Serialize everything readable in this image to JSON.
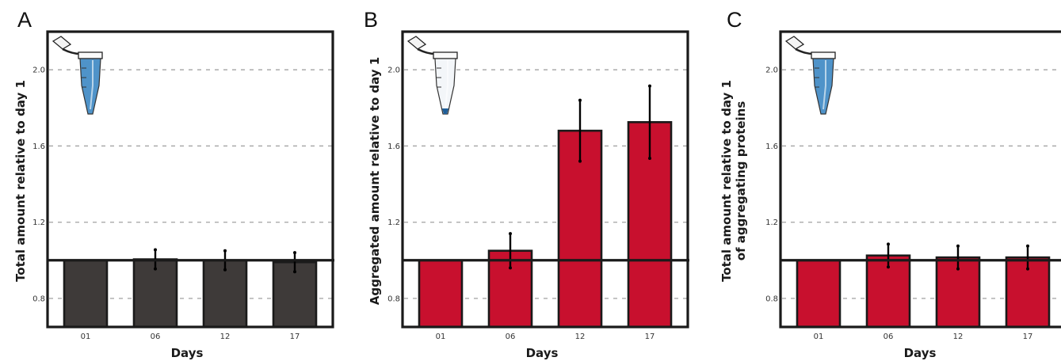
{
  "chart_data": [
    {
      "type": "bar",
      "panel_label": "A",
      "categories": [
        "01",
        "06",
        "12",
        "17"
      ],
      "values": [
        1.0,
        1.005,
        1.0,
        0.99
      ],
      "errors": [
        0.0,
        0.05,
        0.05,
        0.05
      ],
      "xlabel": "Days",
      "ylabel": [
        "Total amount relative to day 1"
      ],
      "ylim": [
        0.65,
        2.2
      ],
      "yticks": [
        "0.8",
        "1.2",
        "1.6",
        "2.0"
      ],
      "reference_line": 1.0,
      "grid": "horizontal dashed",
      "bar_color": "#3e3a39",
      "tube_icon": "full-blue-tube-icon"
    },
    {
      "type": "bar",
      "panel_label": "B",
      "categories": [
        "01",
        "06",
        "12",
        "17"
      ],
      "values": [
        1.0,
        1.05,
        1.68,
        1.725
      ],
      "errors": [
        0.0,
        0.09,
        0.16,
        0.19
      ],
      "xlabel": "Days",
      "ylabel": [
        "Aggregated amount relative to day 1"
      ],
      "ylim": [
        0.65,
        2.2
      ],
      "yticks": [
        "0.8",
        "1.2",
        "1.6",
        "2.0"
      ],
      "reference_line": 1.0,
      "grid": "horizontal dashed",
      "bar_color": "#c8102e",
      "tube_icon": "pellet-tube-icon"
    },
    {
      "type": "bar",
      "panel_label": "C",
      "categories": [
        "01",
        "06",
        "12",
        "17"
      ],
      "values": [
        1.0,
        1.025,
        1.015,
        1.015
      ],
      "errors": [
        0.0,
        0.06,
        0.06,
        0.06
      ],
      "xlabel": "Days",
      "ylabel": [
        "Total amount relative to day 1",
        "of aggregating proteins"
      ],
      "ylim": [
        0.65,
        2.2
      ],
      "yticks": [
        "0.8",
        "1.2",
        "1.6",
        "2.0"
      ],
      "reference_line": 1.0,
      "grid": "horizontal dashed",
      "bar_color": "#c8102e",
      "tube_icon": "full-blue-tube-icon"
    }
  ]
}
